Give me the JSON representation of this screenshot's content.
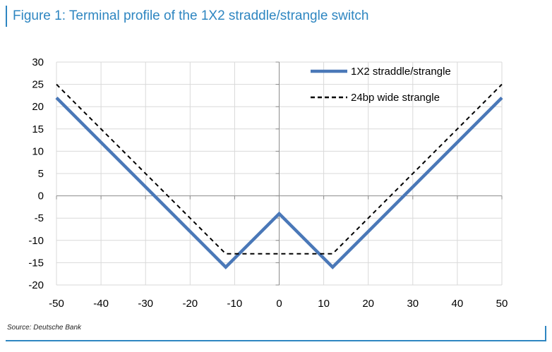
{
  "title": "Figure 1: Terminal profile of the 1X2 straddle/strangle switch",
  "source": "Source: Deutsche Bank",
  "colors": {
    "accent": "#2e86c1",
    "series1": "#4a78b8",
    "series2": "#000000",
    "grid": "#d9d9d9"
  },
  "chart_data": {
    "type": "line",
    "title": "",
    "xlabel": "",
    "ylabel": "",
    "xlim": [
      -50,
      50
    ],
    "ylim": [
      -20,
      30
    ],
    "xticks": [
      -50,
      -40,
      -30,
      -20,
      -10,
      0,
      10,
      20,
      30,
      40,
      50
    ],
    "yticks": [
      30,
      25,
      20,
      15,
      10,
      5,
      0,
      -5,
      -10,
      -15,
      -20
    ],
    "grid": true,
    "legend_position": "top-right",
    "series": [
      {
        "name": "1X2 straddle/strangle",
        "style": "solid",
        "x": [
          -50,
          -12,
          0,
          12,
          50
        ],
        "y": [
          22,
          -16,
          -4,
          -16,
          22
        ]
      },
      {
        "name": "24bp wide strangle",
        "style": "dashed",
        "x": [
          -50,
          -12,
          12,
          50
        ],
        "y": [
          25,
          -13,
          -13,
          25
        ]
      }
    ]
  }
}
